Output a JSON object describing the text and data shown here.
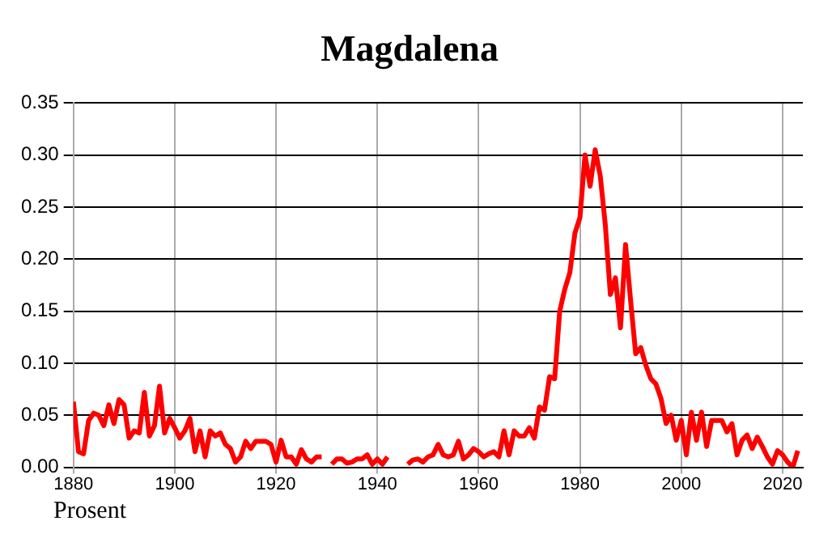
{
  "chart_data": {
    "type": "line",
    "title": "Magdalena",
    "annotations": [
      "Prosent"
    ],
    "x": [
      1880,
      1881,
      1882,
      1883,
      1884,
      1885,
      1886,
      1887,
      1888,
      1889,
      1890,
      1891,
      1892,
      1893,
      1894,
      1895,
      1896,
      1897,
      1898,
      1899,
      1900,
      1901,
      1902,
      1903,
      1904,
      1905,
      1906,
      1907,
      1908,
      1909,
      1910,
      1911,
      1912,
      1913,
      1914,
      1915,
      1916,
      1917,
      1918,
      1919,
      1920,
      1921,
      1922,
      1923,
      1924,
      1925,
      1926,
      1927,
      1928,
      1929,
      1930,
      1931,
      1932,
      1933,
      1934,
      1935,
      1936,
      1937,
      1938,
      1939,
      1940,
      1941,
      1942,
      1943,
      1944,
      1945,
      1946,
      1947,
      1948,
      1949,
      1950,
      1951,
      1952,
      1953,
      1954,
      1955,
      1956,
      1957,
      1958,
      1959,
      1960,
      1961,
      1962,
      1963,
      1964,
      1965,
      1966,
      1967,
      1968,
      1969,
      1970,
      1971,
      1972,
      1973,
      1974,
      1975,
      1976,
      1977,
      1978,
      1979,
      1980,
      1981,
      1982,
      1983,
      1984,
      1985,
      1986,
      1987,
      1988,
      1989,
      1990,
      1991,
      1992,
      1993,
      1994,
      1995,
      1996,
      1997,
      1998,
      1999,
      2000,
      2001,
      2002,
      2003,
      2004,
      2005,
      2006,
      2007,
      2008,
      2009,
      2010,
      2011,
      2012,
      2013,
      2014,
      2015,
      2016,
      2017,
      2018,
      2019,
      2020,
      2021,
      2022,
      2023
    ],
    "series": [
      {
        "color": "#ff0000",
        "values": [
          0.063,
          0.015,
          0.013,
          0.045,
          0.052,
          0.05,
          0.04,
          0.06,
          0.042,
          0.065,
          0.06,
          0.028,
          0.035,
          0.033,
          0.072,
          0.03,
          0.04,
          0.078,
          0.033,
          0.047,
          0.038,
          0.028,
          0.035,
          0.047,
          0.015,
          0.035,
          0.01,
          0.035,
          0.03,
          0.033,
          0.022,
          0.018,
          0.005,
          0.01,
          0.025,
          0.018,
          0.025,
          0.025,
          0.025,
          0.022,
          0.005,
          0.026,
          0.01,
          0.01,
          0.003,
          0.017,
          0.008,
          0.005,
          0.01,
          0.01,
          null,
          0.003,
          0.008,
          0.008,
          0.004,
          0.005,
          0.008,
          0.008,
          0.012,
          0.003,
          0.008,
          0.003,
          0.01,
          null,
          null,
          null,
          0.003,
          0.007,
          0.008,
          0.005,
          0.01,
          0.012,
          0.022,
          0.012,
          0.01,
          0.012,
          0.025,
          0.008,
          0.012,
          0.018,
          0.015,
          0.01,
          0.013,
          0.015,
          0.01,
          0.035,
          0.012,
          0.035,
          0.03,
          0.03,
          0.038,
          0.028,
          0.058,
          0.055,
          0.087,
          0.085,
          0.15,
          0.171,
          0.187,
          0.225,
          0.24,
          0.3,
          0.27,
          0.305,
          0.28,
          0.233,
          0.166,
          0.182,
          0.134,
          0.214,
          0.16,
          0.109,
          0.115,
          0.098,
          0.085,
          0.08,
          0.066,
          0.042,
          0.05,
          0.026,
          0.045,
          0.012,
          0.053,
          0.026,
          0.053,
          0.02,
          0.045,
          0.045,
          0.045,
          0.034,
          0.042,
          0.012,
          0.026,
          0.031,
          0.018,
          0.029,
          0.02,
          0.01,
          0.003,
          0.016,
          0.012,
          0.005,
          0.0,
          0.016
        ]
      }
    ],
    "xlim": [
      1880,
      2024
    ],
    "xticks": [
      1880,
      1900,
      1920,
      1940,
      1960,
      1980,
      2000,
      2020
    ],
    "ylim": [
      0,
      0.35
    ],
    "yticks": [
      {
        "value": 0,
        "label": "0.00"
      },
      {
        "value": 0.05,
        "label": "0.05"
      },
      {
        "value": 0.1,
        "label": "0.10"
      },
      {
        "value": 0.15,
        "label": "0.15"
      },
      {
        "value": 0.2,
        "label": "0.20"
      },
      {
        "value": 0.25,
        "label": "0.25"
      },
      {
        "value": 0.3,
        "label": "0.30"
      },
      {
        "value": 0.35,
        "label": "0.35"
      }
    ],
    "grid": true,
    "legend": false,
    "marker": "none",
    "line_style": "solid"
  }
}
